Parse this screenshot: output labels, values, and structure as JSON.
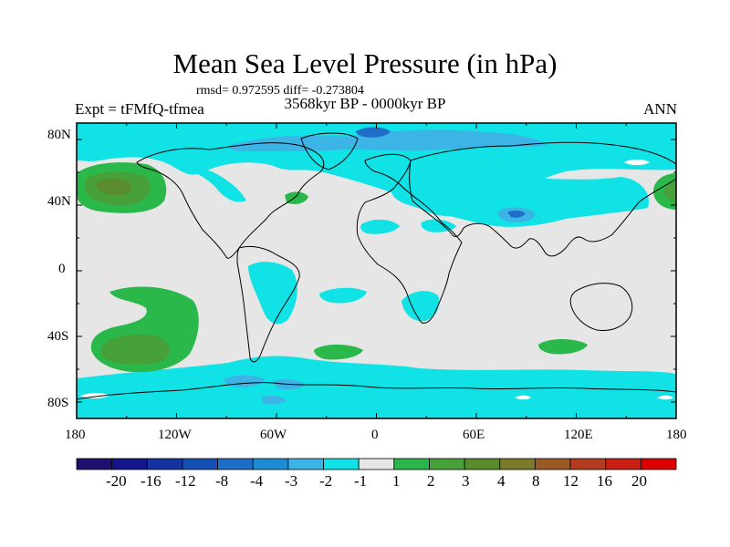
{
  "header": {
    "title": "Mean Sea Level Pressure (in hPa)",
    "stats": "rmsd= 0.972595 diff= -0.273804",
    "left_label": "Expt = tFMfQ-tfmea",
    "center_label": "3568kyr BP - 0000kyr BP",
    "right_label": "ANN"
  },
  "axes": {
    "y_ticks": [
      "80N",
      "40N",
      "0",
      "40S",
      "80S"
    ],
    "x_ticks": [
      "180",
      "120W",
      "60W",
      "0",
      "60E",
      "120E",
      "180"
    ]
  },
  "colorbar": {
    "labels": [
      "-20",
      "-16",
      "-12",
      "-8",
      "-4",
      "-3",
      "-2",
      "-1",
      "1",
      "2",
      "3",
      "4",
      "8",
      "12",
      "16",
      "20"
    ],
    "colors": [
      "#1e0f6e",
      "#14148c",
      "#1432a0",
      "#1450b4",
      "#1e6ec8",
      "#1e8cd2",
      "#3cb4e6",
      "#10e2e6",
      "#e6e6e6",
      "#2ab84a",
      "#48a03a",
      "#5a8c2e",
      "#7a7a2a",
      "#9a5a28",
      "#b43c1e",
      "#c81e14",
      "#dc0000"
    ]
  },
  "map_colors": {
    "neutral": "#e6e6e6",
    "cyan": "#10e2e6",
    "light_blue": "#3cb4e6",
    "blue": "#1e6ec8",
    "green": "#2ab84a",
    "dark_green": "#48a03a",
    "olive": "#5a8c2e",
    "white": "#ffffff",
    "coast": "#000000"
  }
}
